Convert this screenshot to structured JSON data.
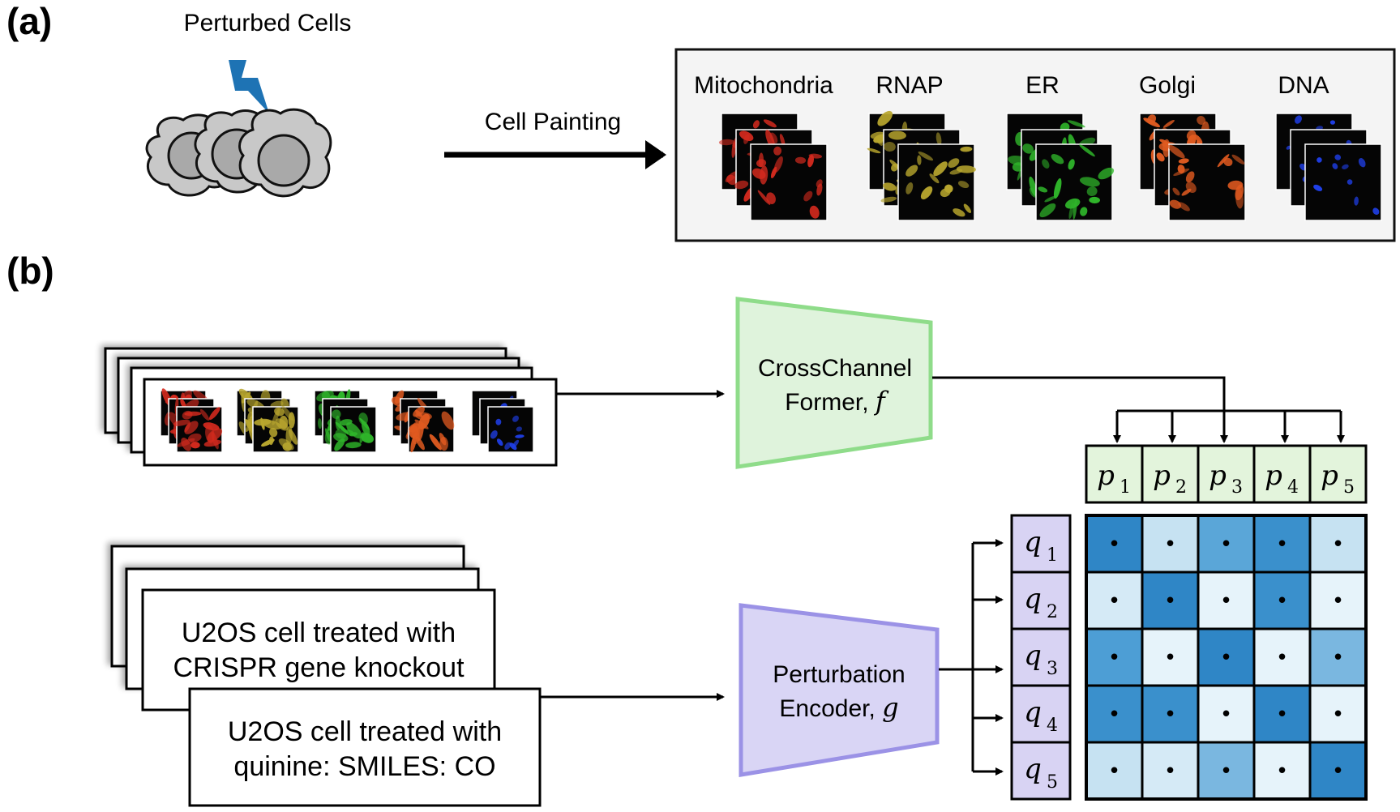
{
  "panel_a": {
    "label": "(a)",
    "cells_label": "Perturbed Cells",
    "arrow_label": "Cell Painting",
    "channels": [
      {
        "name": "Mitochondria",
        "color": "#d42a1e"
      },
      {
        "name": "RNAP",
        "color": "#b8a62e"
      },
      {
        "name": "ER",
        "color": "#2fb52a"
      },
      {
        "name": "Golgi",
        "color": "#e05a20"
      },
      {
        "name": "DNA",
        "color": "#1f3fe8"
      }
    ],
    "lightning_color": "#1e73b4"
  },
  "panel_b": {
    "label": "(b)",
    "image_encoder": {
      "line1": "CrossChannel",
      "line2": "Former, ",
      "symbol": "f",
      "fill": "#dff3dc",
      "stroke": "#8fdc8a"
    },
    "text_encoder": {
      "line1": "Perturbation",
      "line2": "Encoder, ",
      "symbol": "g",
      "fill": "#d9d5f5",
      "stroke": "#9b92e6"
    },
    "text_cards": [
      {
        "line1": "U2OS cell treated with",
        "line2": "CRISPR gene knockout"
      },
      {
        "line1": "U2OS cell treated with",
        "line2": "quinine: SMILES: CO"
      }
    ],
    "p_tokens": [
      {
        "var": "p",
        "sub": "1"
      },
      {
        "var": "p",
        "sub": "2"
      },
      {
        "var": "p",
        "sub": "3"
      },
      {
        "var": "p",
        "sub": "4"
      },
      {
        "var": "p",
        "sub": "5"
      }
    ],
    "q_tokens": [
      {
        "var": "q",
        "sub": "1"
      },
      {
        "var": "q",
        "sub": "2"
      },
      {
        "var": "q",
        "sub": "3"
      },
      {
        "var": "q",
        "sub": "4"
      },
      {
        "var": "q",
        "sub": "5"
      }
    ],
    "p_fill": "#e3f4dc",
    "q_fill": "#d8d3f3",
    "matrix_symbol": "•",
    "matrix": [
      [
        "#2f86c6",
        "#c6e2f2",
        "#5aa6d8",
        "#3a90cc",
        "#c6e2f2"
      ],
      [
        "#d5eaf6",
        "#2f86c6",
        "#e6f3fa",
        "#3a90cc",
        "#e6f3fa"
      ],
      [
        "#4d9ed5",
        "#e6f3fa",
        "#2f86c6",
        "#e6f3fa",
        "#7ab7e0"
      ],
      [
        "#3a90cc",
        "#3a90cc",
        "#e6f3fa",
        "#2f86c6",
        "#e6f3fa"
      ],
      [
        "#c6e2f2",
        "#d5eaf6",
        "#7ab7e0",
        "#e6f3fa",
        "#2f86c6"
      ]
    ]
  }
}
